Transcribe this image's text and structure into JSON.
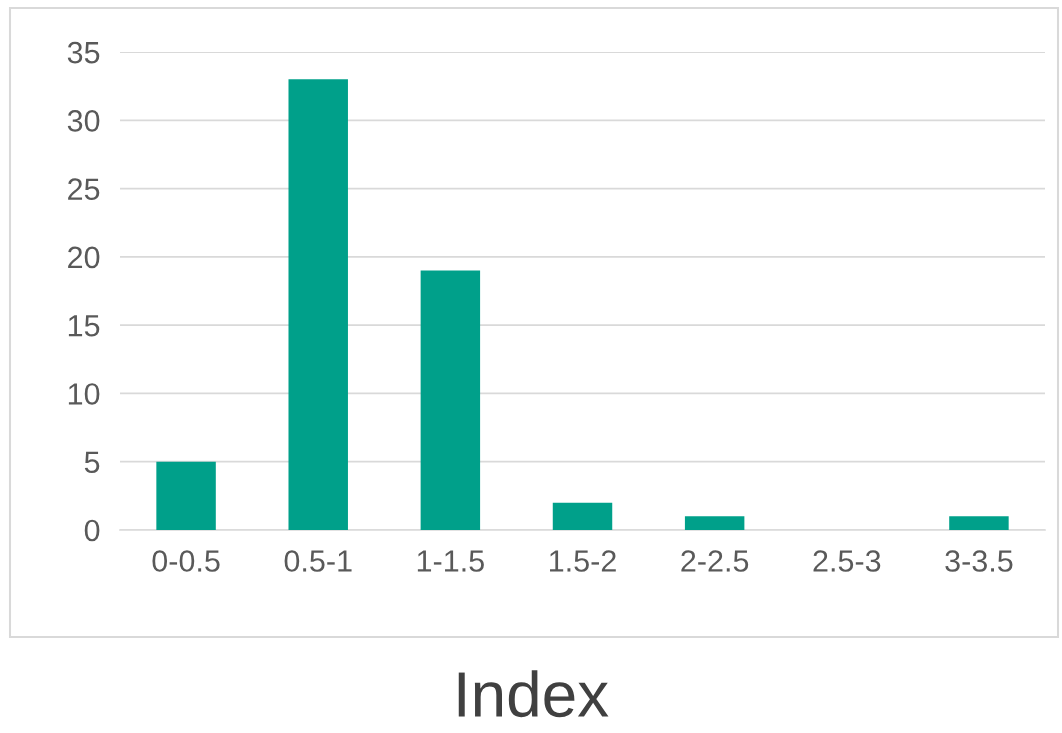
{
  "chart_data": {
    "type": "bar",
    "xlabel": "Index",
    "categories": [
      "0-0.5",
      "0.5-1",
      "1-1.5",
      "1.5-2",
      "2-2.5",
      "2.5-3",
      "3-3.5"
    ],
    "values": [
      5,
      33,
      19,
      2,
      1,
      0,
      1
    ],
    "color": "#00a08a",
    "ylim": [
      0,
      35
    ],
    "yticks": [
      0,
      5,
      10,
      15,
      20,
      25,
      30,
      35
    ],
    "grid": "y"
  }
}
